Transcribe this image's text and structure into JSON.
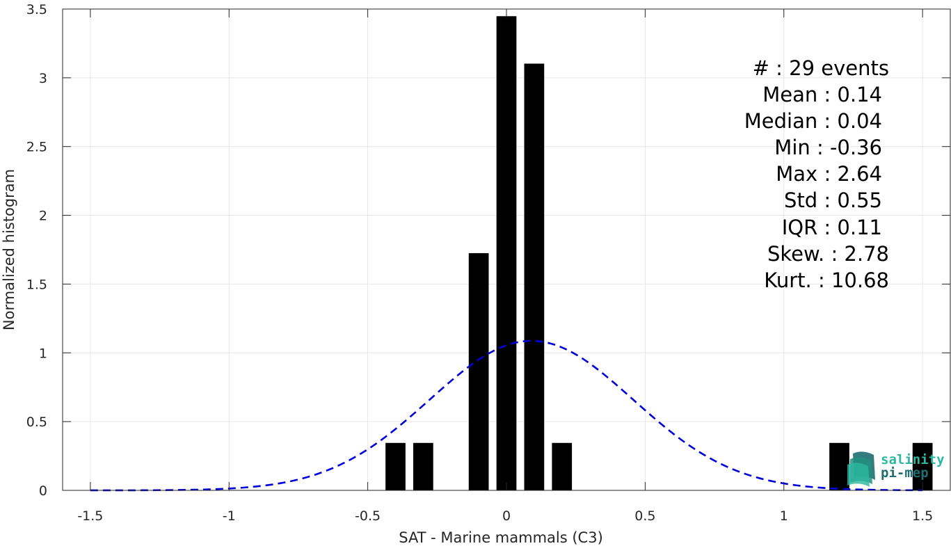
{
  "colors": {
    "bar": "#000000",
    "fit_line": "#0000dd",
    "grid": "#e6e6e6",
    "axis": "#262626",
    "logo_teal": "#2bb8a0",
    "logo_dark": "#1e6e70"
  },
  "chart_data": {
    "type": "bar",
    "xlabel": "SAT - Marine mammals (C3)",
    "ylabel": "Normalized histogram",
    "xlim": [
      -1.6,
      1.6
    ],
    "ylim": [
      0,
      3.5
    ],
    "grid": true,
    "xticks": [
      -1.5,
      -1,
      -0.5,
      0,
      0.5,
      1,
      1.5
    ],
    "xtick_labels": [
      "-1.5",
      "-1",
      "-0.5",
      "0",
      "0.5",
      "1",
      "1.5"
    ],
    "yticks": [
      0,
      0.5,
      1,
      1.5,
      2,
      2.5,
      3,
      3.5
    ],
    "ytick_labels": [
      "0",
      "0.5",
      "1",
      "1.5",
      "2",
      "2.5",
      "3",
      "3.5"
    ],
    "bin_width": 0.1,
    "bars": [
      {
        "x": -0.4,
        "value": 0.345
      },
      {
        "x": -0.3,
        "value": 0.345
      },
      {
        "x": -0.1,
        "value": 1.725
      },
      {
        "x": 0.0,
        "value": 3.448
      },
      {
        "x": 0.1,
        "value": 3.103
      },
      {
        "x": 0.2,
        "value": 0.345
      },
      {
        "x": 1.2,
        "value": 0.345
      },
      {
        "x": 1.5,
        "value": 0.345
      }
    ],
    "fit": {
      "type": "normal",
      "mean": 0.09,
      "std": 0.367,
      "scale": 1.0,
      "x_range": [
        -1.5,
        1.5
      ],
      "style": "dashed"
    }
  },
  "stats": [
    {
      "label": "#  ",
      "value": "29 events",
      "text": "#  : 29 events"
    },
    {
      "label": "Mean",
      "value": "0.14",
      "text": "Mean : 0.14"
    },
    {
      "label": "Median",
      "value": "0.04",
      "text": "Median : 0.04"
    },
    {
      "label": "Min",
      "value": "-0.36",
      "text": "Min : -0.36"
    },
    {
      "label": "Max",
      "value": "2.64",
      "text": "Max : 2.64"
    },
    {
      "label": "Std",
      "value": "0.55",
      "text": "Std : 0.55"
    },
    {
      "label": "IQR",
      "value": "0.11",
      "text": "IQR : 0.11"
    },
    {
      "label": "Skew.",
      "value": "2.78",
      "text": "Skew. : 2.78"
    },
    {
      "label": "Kurt.",
      "value": "10.68",
      "text": "Kurt. : 10.68"
    }
  ],
  "logo": {
    "line1": "salinity",
    "line2": "pi-mep"
  }
}
